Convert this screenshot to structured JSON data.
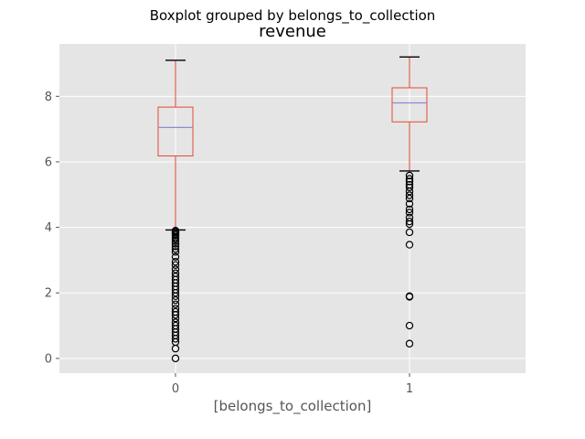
{
  "chart_data": {
    "type": "boxplot",
    "suptitle": "Boxplot grouped by belongs_to_collection",
    "title": "revenue",
    "xlabel": "[belongs_to_collection]",
    "ylabel": "",
    "categories": [
      "0",
      "1"
    ],
    "ylim": [
      -0.45,
      9.6
    ],
    "yticks": [
      0,
      2,
      4,
      6,
      8
    ],
    "grid": true,
    "colors": {
      "background": "#e5e5e5",
      "grid": "#ffffff",
      "box": "#e24a33",
      "median": "#8b8bd9",
      "whisker_cap": "#000000",
      "flier": "#000000",
      "tick_text": "#555555"
    },
    "boxes": [
      {
        "category": "0",
        "whisker_low": 3.92,
        "q1": 6.18,
        "median": 7.05,
        "q3": 7.67,
        "whisker_high": 9.1,
        "fliers": [
          3.9,
          3.87,
          3.83,
          3.79,
          3.75,
          3.7,
          3.65,
          3.58,
          3.5,
          3.42,
          3.34,
          3.25,
          3.1,
          2.95,
          2.85,
          2.72,
          2.6,
          2.5,
          2.4,
          2.3,
          2.2,
          2.1,
          2.0,
          1.9,
          1.78,
          1.65,
          1.52,
          1.42,
          1.33,
          1.22,
          1.1,
          1.0,
          0.9,
          0.8,
          0.7,
          0.6,
          0.5,
          0.3,
          0.0
        ]
      },
      {
        "category": "1",
        "whisker_low": 5.72,
        "q1": 7.22,
        "median": 7.8,
        "q3": 8.26,
        "whisker_high": 9.2,
        "fliers": [
          5.58,
          5.48,
          5.4,
          5.3,
          5.22,
          5.1,
          4.98,
          4.88,
          4.72,
          4.55,
          4.45,
          4.3,
          4.18,
          4.1,
          3.85,
          3.47,
          1.9,
          1.88,
          1.0,
          0.45
        ]
      }
    ]
  }
}
